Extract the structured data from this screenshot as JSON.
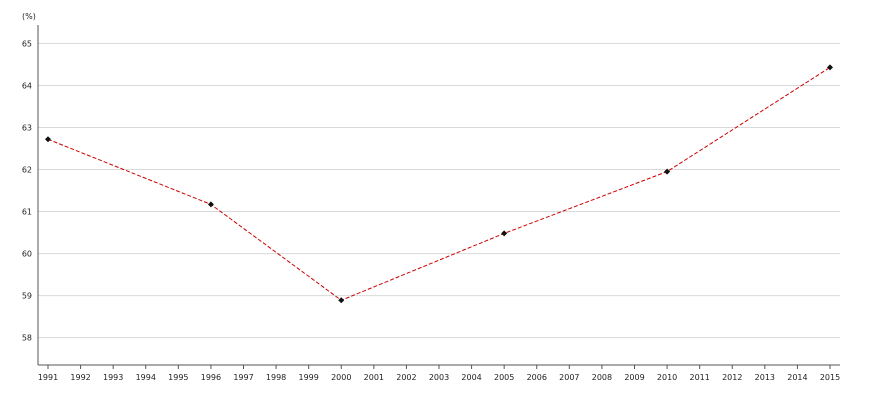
{
  "chart_data": {
    "type": "line",
    "unit_label": "(%)",
    "x": [
      1991,
      1992,
      1993,
      1994,
      1995,
      1996,
      1997,
      1998,
      1999,
      2000,
      2001,
      2002,
      2003,
      2004,
      2005,
      2006,
      2007,
      2008,
      2009,
      2010,
      2011,
      2012,
      2013,
      2014,
      2015
    ],
    "ylim": [
      57.35,
      65.2
    ],
    "yticks": [
      58,
      59,
      60,
      61,
      62,
      63,
      64,
      65
    ],
    "grid": true,
    "series": [
      {
        "color": "#cc0000",
        "marker_color": "#111111",
        "line_style": "dashed",
        "points": [
          {
            "x": 1991,
            "y": 62.72
          },
          {
            "x": 1996,
            "y": 61.17
          },
          {
            "x": 2000,
            "y": 58.89
          },
          {
            "x": 2005,
            "y": 60.48
          },
          {
            "x": 2010,
            "y": 61.95
          },
          {
            "x": 2015,
            "y": 64.43
          }
        ]
      }
    ]
  }
}
